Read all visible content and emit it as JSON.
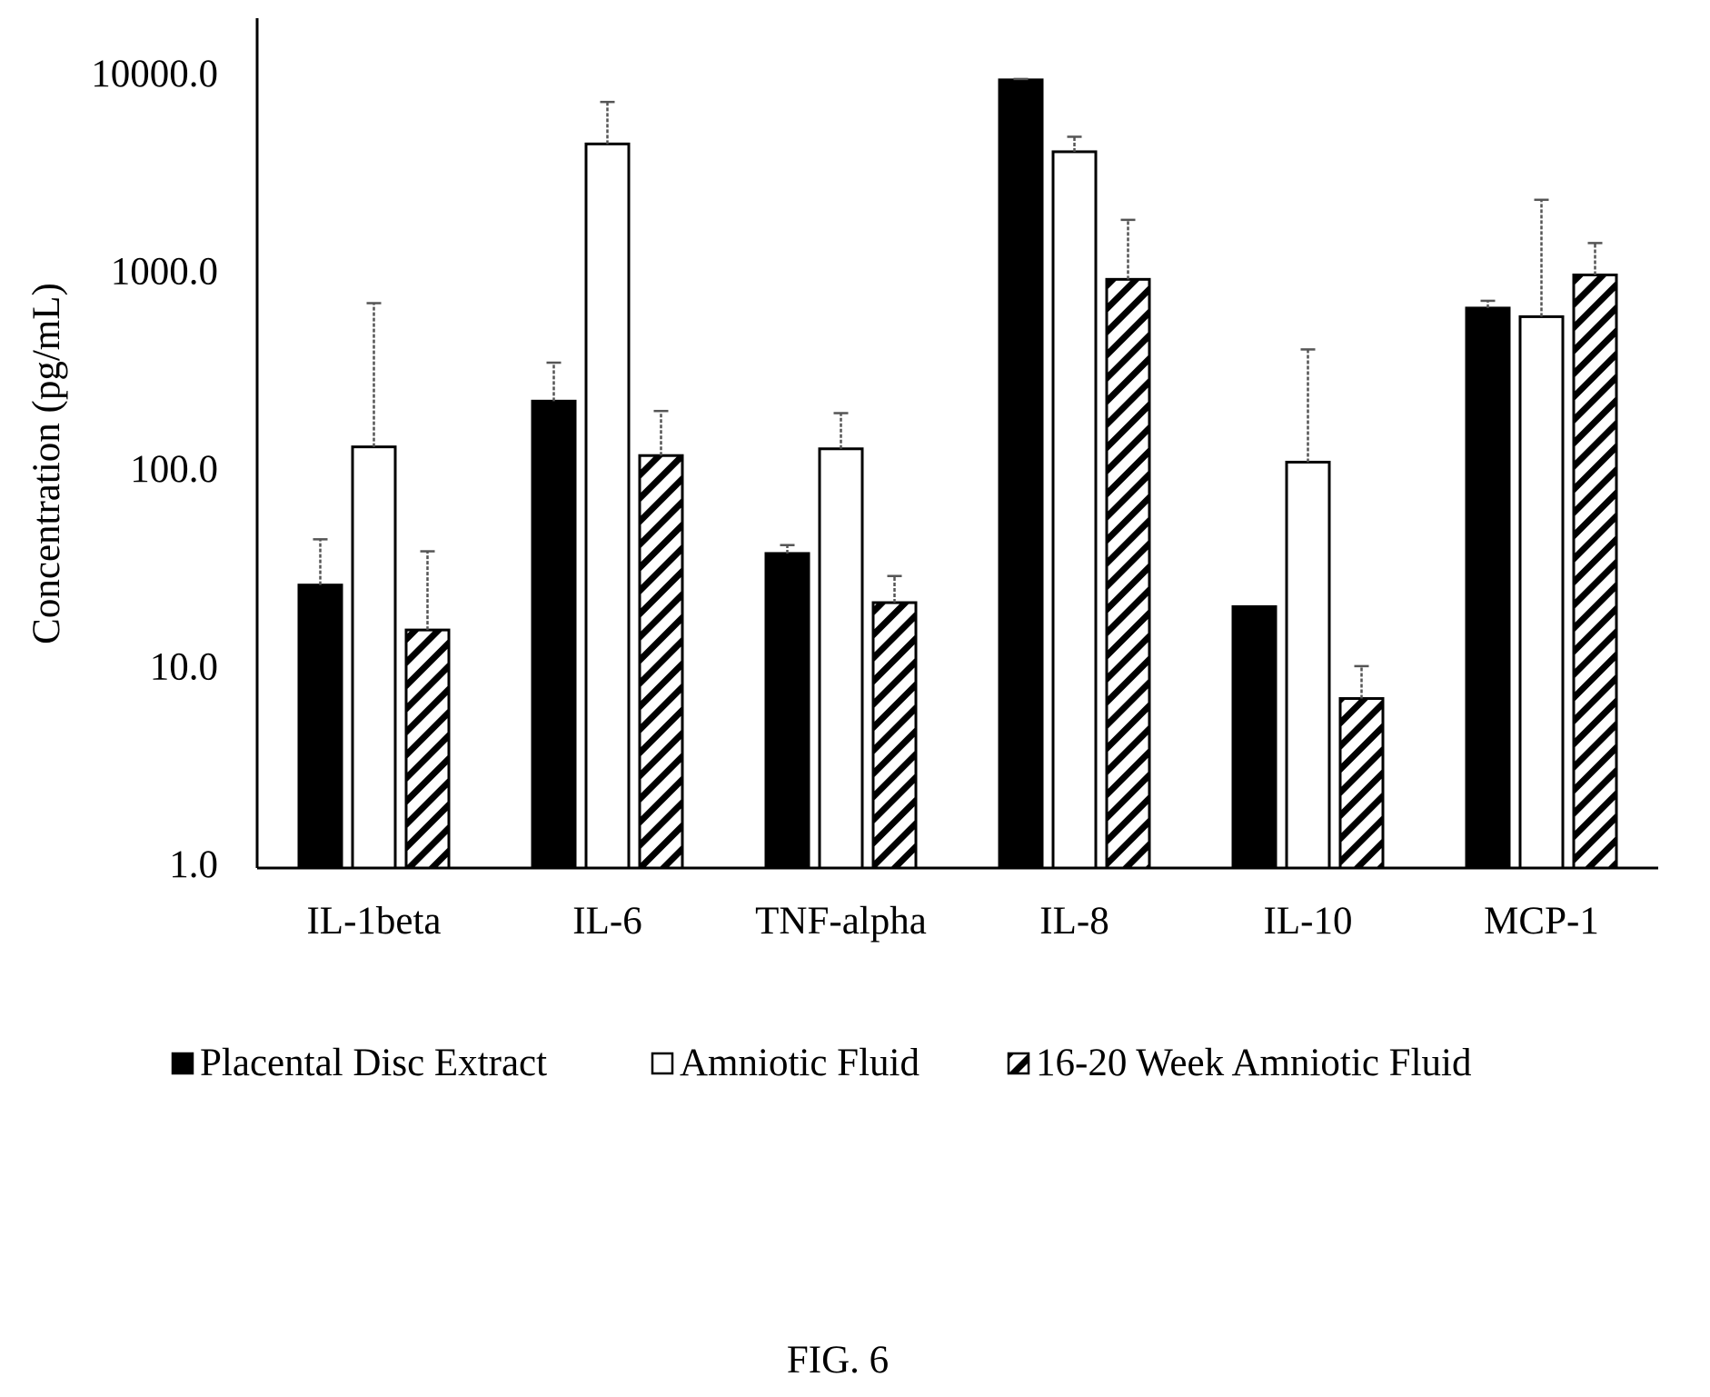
{
  "chart_data": {
    "type": "bar",
    "title": "",
    "xlabel": "",
    "ylabel": "Concentration (pg/mL)",
    "yscale": "log",
    "ylim": [
      1,
      10000
    ],
    "yticks": [
      1,
      10,
      100,
      1000,
      10000
    ],
    "ytick_labels": [
      "1.0",
      "10.0",
      "100.0",
      "1000.0",
      "10000.0"
    ],
    "grid": false,
    "legend_position": "bottom",
    "categories": [
      "IL-1beta",
      "IL-6",
      "TNF-alpha",
      "IL-8",
      "IL-10",
      "MCP-1"
    ],
    "series": [
      {
        "name": "Placental Disc Extract",
        "pattern": "solid",
        "color": "#000000",
        "values": [
          27,
          230,
          39,
          9700,
          21,
          680
        ],
        "error_upper": [
          46,
          360,
          43,
          9800,
          null,
          740
        ]
      },
      {
        "name": "Amniotic Fluid",
        "pattern": "open",
        "color": "#ffffff",
        "values": [
          135,
          4600,
          132,
          4200,
          113,
          615
        ],
        "error_upper": [
          720,
          7500,
          200,
          5000,
          420,
          2400
        ]
      },
      {
        "name": "16-20 Week Amniotic Fluid",
        "pattern": "hatched",
        "color": "#000000",
        "values": [
          16,
          122,
          22,
          950,
          7.2,
          1000
        ],
        "error_upper": [
          40,
          205,
          30,
          1900,
          10.5,
          1450
        ]
      }
    ]
  },
  "caption": "FIG. 6"
}
